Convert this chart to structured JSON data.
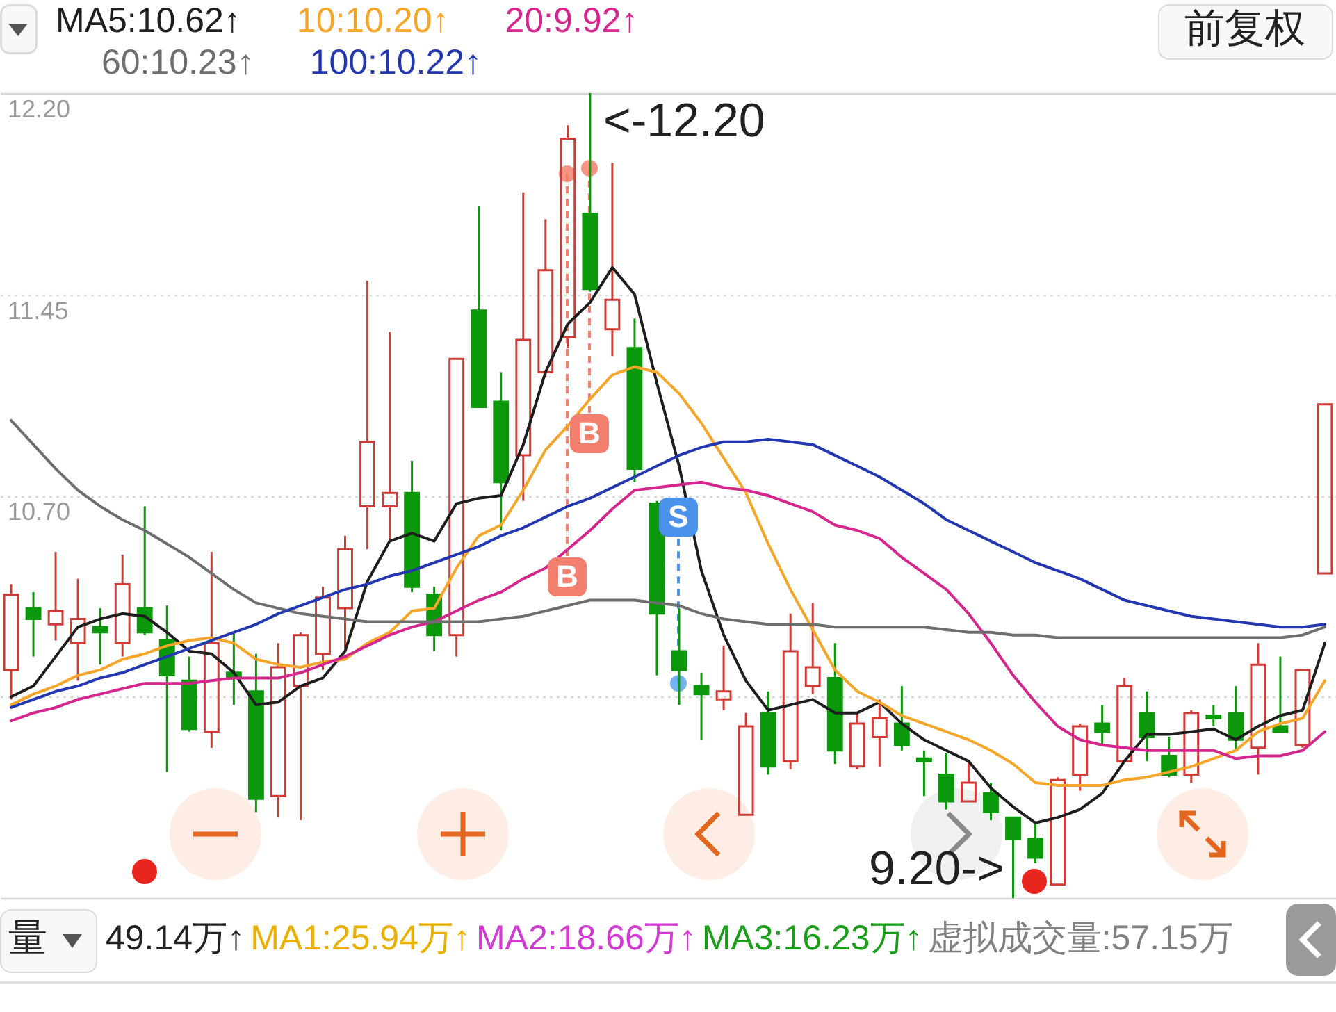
{
  "chart_data": {
    "type": "candlestick",
    "categories": [
      null,
      null,
      null,
      null,
      null,
      null,
      null,
      null,
      null,
      null,
      null,
      null,
      null,
      null,
      null,
      null,
      null,
      null,
      null,
      null,
      null,
      null,
      null,
      null,
      null,
      null,
      null,
      null,
      null,
      null,
      null,
      null,
      null,
      null,
      null,
      null,
      null,
      null,
      null,
      null,
      null,
      null,
      null,
      null,
      null,
      null,
      null,
      null,
      null,
      null,
      null,
      null,
      null,
      null,
      null,
      null,
      null,
      null,
      null,
      null
    ],
    "ohlc": [
      [
        10.05,
        10.37,
        9.94,
        10.33
      ],
      [
        10.28,
        10.34,
        10.1,
        10.24
      ],
      [
        10.22,
        10.49,
        10.16,
        10.27
      ],
      [
        10.15,
        10.39,
        10.01,
        10.24
      ],
      [
        10.21,
        10.28,
        10.07,
        10.19
      ],
      [
        10.15,
        10.48,
        10.1,
        10.37
      ],
      [
        10.28,
        10.66,
        10.18,
        10.19
      ],
      [
        10.16,
        10.29,
        9.67,
        10.03
      ],
      [
        10.01,
        10.1,
        9.82,
        9.83
      ],
      [
        9.82,
        10.49,
        9.76,
        10.15
      ],
      [
        10.04,
        10.19,
        9.92,
        10.02
      ],
      [
        9.97,
        10.11,
        9.52,
        9.57
      ],
      [
        9.58,
        10.15,
        9.5,
        10.06
      ],
      [
        9.99,
        10.19,
        9.49,
        10.18
      ],
      [
        10.11,
        10.36,
        10.05,
        10.32
      ],
      [
        10.28,
        10.55,
        10.13,
        10.5
      ],
      [
        10.66,
        11.5,
        10.5,
        10.9
      ],
      [
        10.66,
        11.31,
        10.53,
        10.71
      ],
      [
        10.71,
        10.83,
        10.34,
        10.36
      ],
      [
        10.33,
        10.36,
        10.12,
        10.18
      ],
      [
        10.18,
        11.21,
        10.1,
        11.21
      ],
      [
        11.39,
        11.78,
        11.03,
        11.03
      ],
      [
        11.05,
        11.16,
        10.57,
        10.75
      ],
      [
        10.85,
        11.83,
        10.68,
        11.28
      ],
      [
        11.16,
        11.73,
        11.14,
        11.54
      ],
      [
        11.29,
        12.08,
        11.25,
        12.03
      ],
      [
        11.75,
        12.2,
        11.46,
        11.47
      ],
      [
        11.32,
        11.94,
        11.22,
        11.43
      ],
      [
        11.25,
        11.36,
        10.75,
        10.8
      ],
      [
        10.67,
        10.68,
        10.03,
        10.26
      ],
      [
        10.12,
        10.28,
        9.92,
        10.05
      ],
      [
        9.99,
        10.04,
        9.79,
        9.96
      ],
      [
        9.94,
        10.14,
        9.9,
        9.97
      ],
      [
        9.51,
        9.89,
        9.51,
        9.84
      ],
      [
        9.89,
        9.97,
        9.66,
        9.69
      ],
      [
        9.71,
        10.26,
        9.68,
        10.12
      ],
      [
        9.99,
        10.3,
        9.96,
        10.06
      ],
      [
        10.02,
        10.15,
        9.7,
        9.75
      ],
      [
        9.69,
        9.89,
        9.68,
        9.85
      ],
      [
        9.8,
        9.94,
        9.69,
        9.87
      ],
      [
        9.85,
        9.99,
        9.75,
        9.77
      ],
      [
        9.72,
        9.75,
        9.58,
        9.71
      ],
      [
        9.66,
        9.74,
        9.53,
        9.56
      ],
      [
        9.56,
        9.71,
        9.56,
        9.63
      ],
      [
        9.59,
        9.63,
        9.49,
        9.52
      ],
      [
        9.5,
        9.5,
        9.2,
        9.42
      ],
      [
        9.42,
        9.48,
        9.33,
        9.35
      ],
      [
        9.25,
        9.65,
        9.25,
        9.64
      ],
      [
        9.66,
        9.85,
        9.6,
        9.84
      ],
      [
        9.85,
        9.92,
        9.77,
        9.82
      ],
      [
        9.71,
        10.02,
        9.71,
        9.99
      ],
      [
        9.89,
        9.97,
        9.71,
        9.8
      ],
      [
        9.73,
        9.8,
        9.65,
        9.66
      ],
      [
        9.66,
        9.9,
        9.63,
        9.89
      ],
      [
        9.88,
        9.92,
        9.84,
        9.87
      ],
      [
        9.89,
        9.99,
        9.75,
        9.79
      ],
      [
        9.76,
        10.15,
        9.66,
        10.07
      ],
      [
        9.84,
        10.1,
        9.82,
        9.82
      ],
      [
        9.77,
        10.05,
        9.76,
        10.05
      ],
      [
        10.41,
        11.04,
        10.41,
        11.04
      ]
    ],
    "colors": [
      "#d13b36",
      "#0b980b",
      "#d13b36",
      "#d13b36",
      "#0b980b",
      "#d13b36",
      "#0b980b",
      "#0b980b",
      "#0b980b",
      "#d13b36",
      "#0b980b",
      "#0b980b",
      "#d13b36",
      "#d13b36",
      "#d13b36",
      "#d13b36",
      "#d13b36",
      "#d13b36",
      "#0b980b",
      "#0b980b",
      "#d13b36",
      "#0b980b",
      "#0b980b",
      "#d13b36",
      "#d13b36",
      "#d13b36",
      "#0b980b",
      "#d13b36",
      "#0b980b",
      "#0b980b",
      "#0b980b",
      "#0b980b",
      "#d13b36",
      "#d13b36",
      "#0b980b",
      "#d13b36",
      "#d13b36",
      "#0b980b",
      "#d13b36",
      "#d13b36",
      "#0b980b",
      "#0b980b",
      "#0b980b",
      "#d13b36",
      "#0b980b",
      "#0b980b",
      "#0b980b",
      "#d13b36",
      "#d13b36",
      "#0b980b",
      "#d13b36",
      "#0b980b",
      "#0b980b",
      "#d13b36",
      "#0b980b",
      "#0b980b",
      "#d13b36",
      "#0b980b",
      "#d13b36",
      "#d13b36"
    ],
    "series": [
      {
        "name": "MA5:10.62↑",
        "type": "line",
        "color": "#1e1e1e",
        "values": [
          9.95,
          9.99,
          10.1,
          10.21,
          10.24,
          10.26,
          10.25,
          10.19,
          10.12,
          10.11,
          10.04,
          9.92,
          9.93,
          9.99,
          10.02,
          10.12,
          10.38,
          10.53,
          10.56,
          10.53,
          10.67,
          10.69,
          10.7,
          10.89,
          11.16,
          11.34,
          11.42,
          11.55,
          11.45,
          11.12,
          10.81,
          10.42,
          10.18,
          10.01,
          9.9,
          9.92,
          9.94,
          9.89,
          9.89,
          9.93,
          9.85,
          9.79,
          9.75,
          9.71,
          9.61,
          9.54,
          9.48,
          9.5,
          9.53,
          9.59,
          9.71,
          9.81,
          9.81,
          9.82,
          9.83,
          9.79,
          9.84,
          9.88,
          9.9,
          10.15
        ]
      },
      {
        "name": "10:10.20↑",
        "type": "line",
        "color": "#f5a629",
        "values": [
          9.92,
          9.96,
          9.99,
          10.03,
          10.05,
          10.09,
          10.11,
          10.14,
          10.16,
          10.17,
          10.15,
          10.09,
          10.07,
          10.06,
          10.08,
          10.09,
          10.15,
          10.19,
          10.27,
          10.28,
          10.43,
          10.55,
          10.59,
          10.72,
          10.87,
          10.96,
          11.06,
          11.15,
          11.18,
          11.16,
          11.08,
          10.97,
          10.84,
          10.71,
          10.52,
          10.35,
          10.2,
          10.05,
          9.97,
          9.93,
          9.88,
          9.85,
          9.82,
          9.79,
          9.75,
          9.7,
          9.63,
          9.62,
          9.62,
          9.62,
          9.64,
          9.65,
          9.67,
          9.69,
          9.72,
          9.75,
          9.82,
          9.85,
          9.87,
          10.01
        ]
      },
      {
        "name": "20:9.92↑",
        "type": "line",
        "color": "#d4268c",
        "values": [
          9.86,
          9.89,
          9.91,
          9.94,
          9.96,
          9.98,
          10.0,
          10.0,
          10.0,
          10.01,
          10.02,
          10.02,
          10.02,
          10.04,
          10.07,
          10.1,
          10.14,
          10.18,
          10.21,
          10.23,
          10.27,
          10.31,
          10.34,
          10.39,
          10.43,
          10.5,
          10.57,
          10.65,
          10.72,
          10.73,
          10.74,
          10.75,
          10.73,
          10.72,
          10.7,
          10.67,
          10.64,
          10.59,
          10.57,
          10.54,
          10.47,
          10.41,
          10.35,
          10.26,
          10.15,
          10.03,
          9.93,
          9.84,
          9.79,
          9.77,
          9.76,
          9.75,
          9.75,
          9.75,
          9.75,
          9.72,
          9.73,
          9.73,
          9.75,
          9.82
        ]
      },
      {
        "name": "60:10.23↑",
        "type": "line",
        "color": "#6e6e6e",
        "values": [
          10.98,
          10.89,
          10.8,
          10.72,
          10.66,
          10.61,
          10.57,
          10.52,
          10.47,
          10.41,
          10.35,
          10.3,
          10.28,
          10.26,
          10.25,
          10.24,
          10.23,
          10.23,
          10.23,
          10.23,
          10.23,
          10.23,
          10.24,
          10.25,
          10.27,
          10.29,
          10.31,
          10.31,
          10.31,
          10.3,
          10.29,
          10.26,
          10.24,
          10.23,
          10.22,
          10.22,
          10.22,
          10.21,
          10.21,
          10.21,
          10.21,
          10.21,
          10.2,
          10.19,
          10.19,
          10.18,
          10.18,
          10.17,
          10.17,
          10.17,
          10.17,
          10.17,
          10.17,
          10.17,
          10.17,
          10.17,
          10.17,
          10.17,
          10.18,
          10.21
        ]
      },
      {
        "name": "100:10.22↑",
        "type": "line",
        "color": "#2338b0",
        "values": [
          9.91,
          9.94,
          9.97,
          9.99,
          10.02,
          10.04,
          10.07,
          10.1,
          10.13,
          10.16,
          10.19,
          10.22,
          10.26,
          10.29,
          10.32,
          10.35,
          10.37,
          10.4,
          10.42,
          10.45,
          10.48,
          10.51,
          10.55,
          10.58,
          10.62,
          10.66,
          10.69,
          10.73,
          10.77,
          10.81,
          10.85,
          10.88,
          10.9,
          10.9,
          10.91,
          10.9,
          10.89,
          10.85,
          10.81,
          10.77,
          10.72,
          10.67,
          10.61,
          10.57,
          10.53,
          10.49,
          10.45,
          10.42,
          10.39,
          10.35,
          10.31,
          10.29,
          10.27,
          10.25,
          10.24,
          10.23,
          10.22,
          10.21,
          10.21,
          10.22
        ]
      }
    ],
    "ylim": [
      9.2,
      12.2
    ],
    "yticks": [
      {
        "value": 12.2,
        "label": "12.20"
      },
      11.45,
      {
        "value": 10.7,
        "label": "10.70"
      },
      {
        "value": 9.95,
        "label": null
      },
      {
        "value": 9.2,
        "label": null
      }
    ],
    "grid": "y",
    "legend": "top left",
    "tick_labels": "y",
    "annotations": [
      "<-12.20",
      "9.20->",
      {
        "text": "B",
        "y": 11.9
      },
      {
        "text": "B",
        "y": 11.92
      },
      {
        "text": "S",
        "y": 10.0
      },
      "前复权",
      "量",
      "49.14万↑",
      "MA1:25.94万↑",
      "MA2:18.66万↑",
      "MA3:16.23万↑",
      "虚拟成交量:57.15万"
    ]
  }
}
